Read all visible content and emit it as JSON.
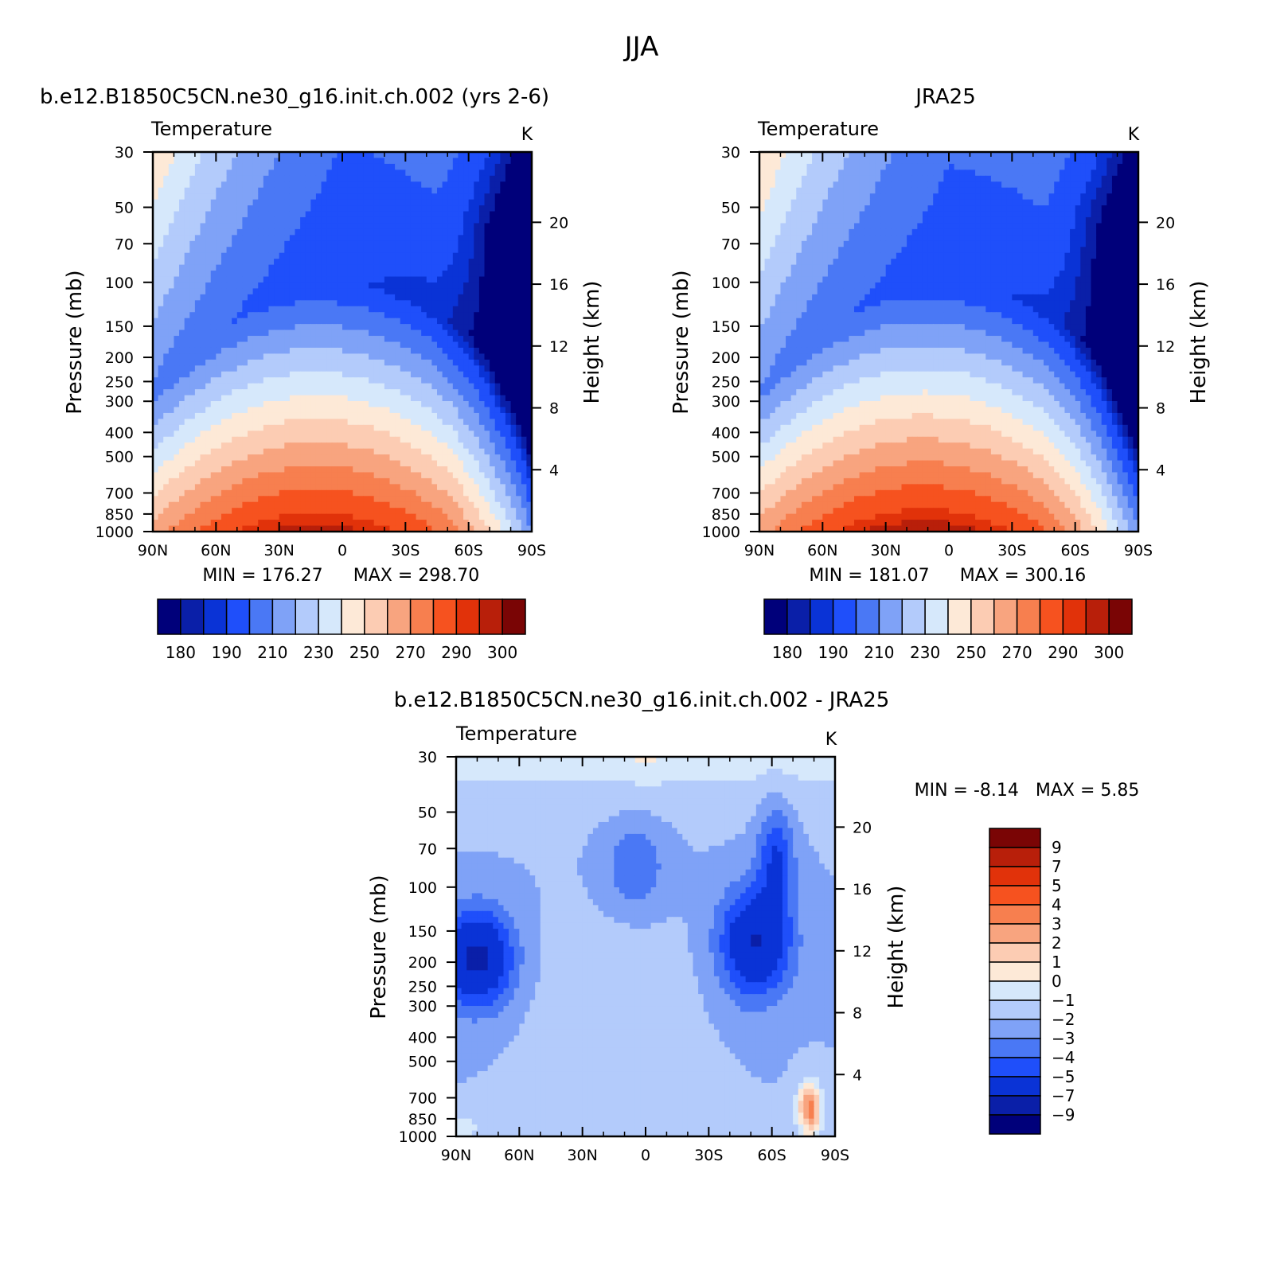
{
  "figure": {
    "title": "JJA"
  },
  "palettes": {
    "temperature": [
      "#00007a",
      "#0a1fa8",
      "#0a33d6",
      "#1f4ffa",
      "#4a78f5",
      "#7fa2f7",
      "#b3cbfb",
      "#d6e8fb",
      "#fde9d7",
      "#fcccb3",
      "#f8a47f",
      "#f77f4f",
      "#f6521f",
      "#e1320a",
      "#b81f0a",
      "#7a0505"
    ],
    "difference": [
      "#00007a",
      "#0a1fa8",
      "#0a33d6",
      "#1f4ffa",
      "#4a78f5",
      "#7fa2f7",
      "#b3cbfb",
      "#d6e8fb",
      "#fde9d7",
      "#fcccb3",
      "#f8a47f",
      "#f77f4f",
      "#f6521f",
      "#e1320a",
      "#b81f0a",
      "#7a0505"
    ]
  },
  "chart_data": [
    {
      "type": "heatmap",
      "title": "b.e12.B1850C5CN.ne30_g16.init.ch.002 (yrs 2-6)",
      "subtitle_left": "Temperature",
      "units": "K",
      "ylabel": "Pressure (mb)",
      "ylabel_right": "Height (km)",
      "x_ticks": [
        "90N",
        "60N",
        "30N",
        "0",
        "30S",
        "60S",
        "90S"
      ],
      "x_range": [
        90,
        -90
      ],
      "y_ticks": [
        30,
        50,
        70,
        100,
        150,
        200,
        250,
        300,
        400,
        500,
        700,
        850,
        1000
      ],
      "y_range": [
        1000,
        30
      ],
      "y_scale": "log",
      "height_ticks": [
        4,
        8,
        12,
        16,
        20
      ],
      "min_label": "MIN = 176.27",
      "max_label": "MAX = 298.70",
      "min": 176.27,
      "max": 298.7,
      "levels": [
        180,
        185,
        190,
        200,
        210,
        220,
        230,
        240,
        250,
        260,
        270,
        280,
        290,
        295,
        300
      ],
      "colorbar_labels": [
        "180",
        "190",
        "210",
        "230",
        "250",
        "270",
        "290",
        "300"
      ],
      "grid": false
    },
    {
      "type": "heatmap",
      "title": "JRA25",
      "subtitle_left": "Temperature",
      "units": "K",
      "ylabel": "Pressure (mb)",
      "ylabel_right": "Height (km)",
      "x_ticks": [
        "90N",
        "60N",
        "30N",
        "0",
        "30S",
        "60S",
        "90S"
      ],
      "x_range": [
        90,
        -90
      ],
      "y_ticks": [
        30,
        50,
        70,
        100,
        150,
        200,
        250,
        300,
        400,
        500,
        700,
        850,
        1000
      ],
      "y_range": [
        1000,
        30
      ],
      "y_scale": "log",
      "height_ticks": [
        4,
        8,
        12,
        16,
        20
      ],
      "min_label": "MIN = 181.07",
      "max_label": "MAX = 300.16",
      "min": 181.07,
      "max": 300.16,
      "levels": [
        180,
        185,
        190,
        200,
        210,
        220,
        230,
        240,
        250,
        260,
        270,
        280,
        290,
        295,
        300
      ],
      "colorbar_labels": [
        "180",
        "190",
        "210",
        "230",
        "250",
        "270",
        "290",
        "300"
      ],
      "grid": false
    },
    {
      "type": "heatmap",
      "title": "b.e12.B1850C5CN.ne30_g16.init.ch.002 - JRA25",
      "subtitle_left": "Temperature",
      "units": "K",
      "ylabel": "Pressure (mb)",
      "ylabel_right": "Height (km)",
      "x_ticks": [
        "90N",
        "60N",
        "30N",
        "0",
        "30S",
        "60S",
        "90S"
      ],
      "x_range": [
        90,
        -90
      ],
      "y_ticks": [
        30,
        50,
        70,
        100,
        150,
        200,
        250,
        300,
        400,
        500,
        700,
        850,
        1000
      ],
      "y_range": [
        1000,
        30
      ],
      "y_scale": "log",
      "height_ticks": [
        4,
        8,
        12,
        16,
        20
      ],
      "minmax_label": "MIN = -8.14   MAX = 5.85",
      "min": -8.14,
      "max": 5.85,
      "levels": [
        -9,
        -7,
        -5,
        -4,
        -3,
        -2,
        -1,
        0,
        1,
        2,
        3,
        4,
        5,
        7,
        9
      ],
      "colorbar_labels": [
        "9",
        "7",
        "5",
        "4",
        "3",
        "2",
        "1",
        "0",
        "−1",
        "−2",
        "−3",
        "−4",
        "−5",
        "−7",
        "−9"
      ],
      "colorbar_orientation": "vertical",
      "grid": false
    }
  ]
}
